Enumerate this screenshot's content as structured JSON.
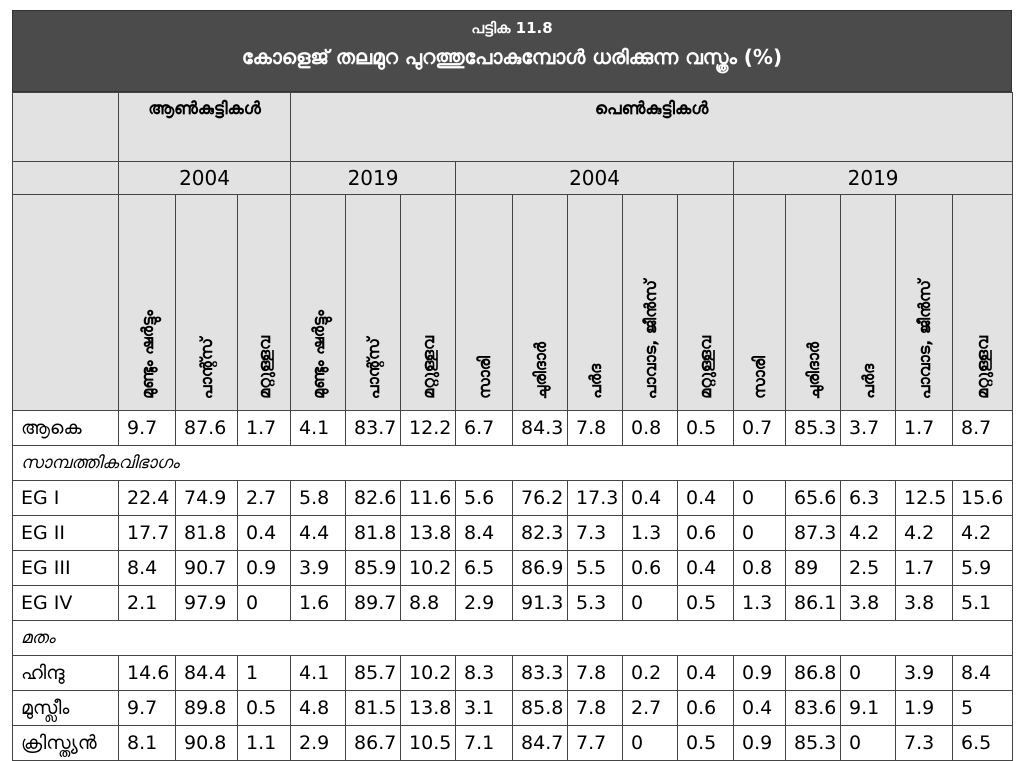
{
  "title": {
    "label": "പട്ടിക 11.8",
    "heading": "കോളെജ് തലമുറ പുറത്തുപോകുമ്പോൾ ധരിക്കുന്ന വസ്ത്രം (%)"
  },
  "table": {
    "groups": [
      "ആൺകുട്ടികൾ",
      "പെൺകുട്ടികൾ"
    ],
    "years": [
      "2004",
      "2019",
      "2004",
      "2019"
    ],
    "columns": [
      "മുണ്ടും ഷർട്ടും",
      "പാന്റ്സ്",
      "മറ്റുള്ളവ",
      "മുണ്ടും ഷർട്ടും",
      "പാന്റ്സ്",
      "മറ്റുള്ളവ",
      "സാരി",
      "ചുരിദാർ",
      "പർദ",
      "പാവാട, ജീൻസ്",
      "മറ്റുള്ളവ",
      "സാരി",
      "ചുരിദാർ",
      "പർദ",
      "പാവാട, ജീൻസ്",
      "മറ്റുള്ളവ"
    ],
    "rows": [
      {
        "label": "ആകെ",
        "cells": [
          9.7,
          87.6,
          1.7,
          4.1,
          83.7,
          12.2,
          6.7,
          84.3,
          7.8,
          0.8,
          0.5,
          0.7,
          85.3,
          3.7,
          1.7,
          8.7
        ]
      },
      {
        "section": "സാമ്പത്തികവിഭാഗം"
      },
      {
        "label": "EG I",
        "cells": [
          22.4,
          74.9,
          2.7,
          5.8,
          82.6,
          11.6,
          5.6,
          76.2,
          17.3,
          0.4,
          0.4,
          0,
          65.6,
          6.3,
          12.5,
          15.6
        ]
      },
      {
        "label": "EG II",
        "cells": [
          17.7,
          81.8,
          0.4,
          4.4,
          81.8,
          13.8,
          8.4,
          82.3,
          7.3,
          1.3,
          0.6,
          0,
          87.3,
          4.2,
          4.2,
          4.2
        ]
      },
      {
        "label": "EG III",
        "cells": [
          8.4,
          90.7,
          0.9,
          3.9,
          85.9,
          10.2,
          6.5,
          86.9,
          5.5,
          0.6,
          0.4,
          0.8,
          89,
          2.5,
          1.7,
          5.9
        ]
      },
      {
        "label": "EG IV",
        "cells": [
          2.1,
          97.9,
          0,
          1.6,
          89.7,
          8.8,
          2.9,
          91.3,
          5.3,
          0,
          0.5,
          1.3,
          86.1,
          3.8,
          3.8,
          5.1
        ]
      },
      {
        "section": "മതം"
      },
      {
        "label": "ഹിന്ദു",
        "cells": [
          14.6,
          84.4,
          1,
          4.1,
          85.7,
          10.2,
          8.3,
          83.3,
          7.8,
          0.2,
          0.4,
          0.9,
          86.8,
          0,
          3.9,
          8.4
        ]
      },
      {
        "label": "മുസ്ലീം",
        "cells": [
          9.7,
          89.8,
          0.5,
          4.8,
          81.5,
          13.8,
          3.1,
          85.8,
          7.8,
          2.7,
          0.6,
          0.4,
          83.6,
          9.1,
          1.9,
          5
        ]
      },
      {
        "label": "ക്രിസ്ത്യൻ",
        "cells": [
          8.1,
          90.8,
          1.1,
          2.9,
          86.7,
          10.5,
          7.1,
          84.7,
          7.7,
          0,
          0.5,
          0.9,
          85.3,
          0,
          7.3,
          6.5
        ]
      }
    ]
  }
}
